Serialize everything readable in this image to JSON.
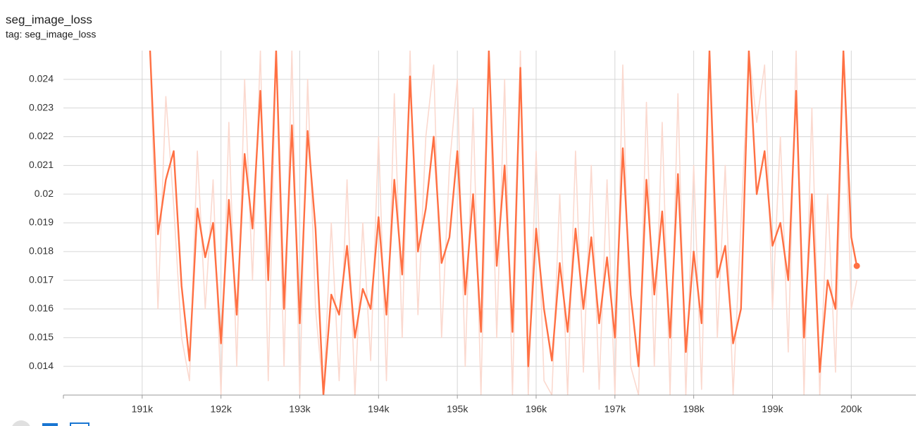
{
  "chart_data": {
    "type": "line",
    "title": "seg_image_loss",
    "subtitle": "tag: seg_image_loss",
    "x": [
      191100,
      191200,
      191300,
      191400,
      191500,
      191600,
      191700,
      191800,
      191900,
      192000,
      192100,
      192200,
      192300,
      192400,
      192500,
      192600,
      192700,
      192800,
      192900,
      193000,
      193100,
      193200,
      193300,
      193400,
      193500,
      193600,
      193700,
      193800,
      193900,
      194000,
      194100,
      194200,
      194300,
      194400,
      194500,
      194600,
      194700,
      194800,
      194900,
      195000,
      195100,
      195200,
      195300,
      195400,
      195500,
      195600,
      195700,
      195800,
      195900,
      196000,
      196100,
      196200,
      196300,
      196400,
      196500,
      196600,
      196700,
      196800,
      196900,
      197000,
      197100,
      197200,
      197300,
      197400,
      197500,
      197600,
      197700,
      197800,
      197900,
      198000,
      198100,
      198200,
      198300,
      198400,
      198500,
      198600,
      198700,
      198800,
      198900,
      199000,
      199100,
      199200,
      199300,
      199400,
      199500,
      199600,
      199700,
      199800,
      199900,
      200000,
      200070
    ],
    "series": [
      {
        "color": "#fbd9cf",
        "values": [
          0.025,
          0.016,
          0.0234,
          0.0196,
          0.015,
          0.0135,
          0.0215,
          0.016,
          0.0205,
          0.013,
          0.0225,
          0.014,
          0.024,
          0.017,
          0.025,
          0.0135,
          0.025,
          0.014,
          0.025,
          0.013,
          0.024,
          0.016,
          0.013,
          0.019,
          0.0135,
          0.0205,
          0.013,
          0.019,
          0.0142,
          0.022,
          0.0135,
          0.0235,
          0.015,
          0.025,
          0.0158,
          0.022,
          0.0245,
          0.015,
          0.021,
          0.024,
          0.014,
          0.023,
          0.013,
          0.025,
          0.015,
          0.024,
          0.013,
          0.025,
          0.013,
          0.0215,
          0.0135,
          0.013,
          0.02,
          0.013,
          0.0215,
          0.0138,
          0.021,
          0.0132,
          0.0205,
          0.013,
          0.0245,
          0.014,
          0.013,
          0.0232,
          0.014,
          0.0225,
          0.013,
          0.0235,
          0.013,
          0.021,
          0.0132,
          0.025,
          0.015,
          0.021,
          0.013,
          0.019,
          0.025,
          0.0225,
          0.0245,
          0.016,
          0.022,
          0.0145,
          0.025,
          0.013,
          0.023,
          0.013,
          0.02,
          0.0138,
          0.025,
          0.016,
          0.017
        ]
      },
      {
        "color": "#ff7043",
        "values": [
          0.025,
          0.0186,
          0.0205,
          0.0215,
          0.0168,
          0.0142,
          0.0195,
          0.0178,
          0.019,
          0.0148,
          0.0198,
          0.0158,
          0.0214,
          0.0188,
          0.0236,
          0.017,
          0.025,
          0.016,
          0.0224,
          0.0155,
          0.0222,
          0.0188,
          0.013,
          0.0165,
          0.0158,
          0.0182,
          0.015,
          0.0167,
          0.016,
          0.0192,
          0.0158,
          0.0205,
          0.0172,
          0.0241,
          0.018,
          0.0195,
          0.022,
          0.0176,
          0.0185,
          0.0215,
          0.0165,
          0.02,
          0.0152,
          0.025,
          0.0175,
          0.021,
          0.0152,
          0.0244,
          0.014,
          0.0188,
          0.016,
          0.0142,
          0.0176,
          0.0152,
          0.0188,
          0.016,
          0.0185,
          0.0155,
          0.0178,
          0.015,
          0.0216,
          0.0165,
          0.014,
          0.0205,
          0.0165,
          0.0194,
          0.015,
          0.0207,
          0.0145,
          0.018,
          0.0155,
          0.025,
          0.0171,
          0.0182,
          0.0148,
          0.016,
          0.025,
          0.02,
          0.0215,
          0.0182,
          0.019,
          0.017,
          0.0236,
          0.015,
          0.02,
          0.0138,
          0.017,
          0.016,
          0.025,
          0.0185,
          0.0175
        ]
      }
    ],
    "xlim": [
      190000,
      200820
    ],
    "ylim": [
      0.013,
      0.025
    ],
    "xticks": [
      {
        "value": 191000,
        "label": "191k"
      },
      {
        "value": 192000,
        "label": "192k"
      },
      {
        "value": 193000,
        "label": "193k"
      },
      {
        "value": 194000,
        "label": "194k"
      },
      {
        "value": 195000,
        "label": "195k"
      },
      {
        "value": 196000,
        "label": "196k"
      },
      {
        "value": 197000,
        "label": "197k"
      },
      {
        "value": 198000,
        "label": "198k"
      },
      {
        "value": 199000,
        "label": "199k"
      },
      {
        "value": 200000,
        "label": "200k"
      }
    ],
    "yticks": [
      0.014,
      0.015,
      0.016,
      0.017,
      0.018,
      0.019,
      0.02,
      0.021,
      0.022,
      0.023,
      0.024
    ],
    "grid": true
  }
}
